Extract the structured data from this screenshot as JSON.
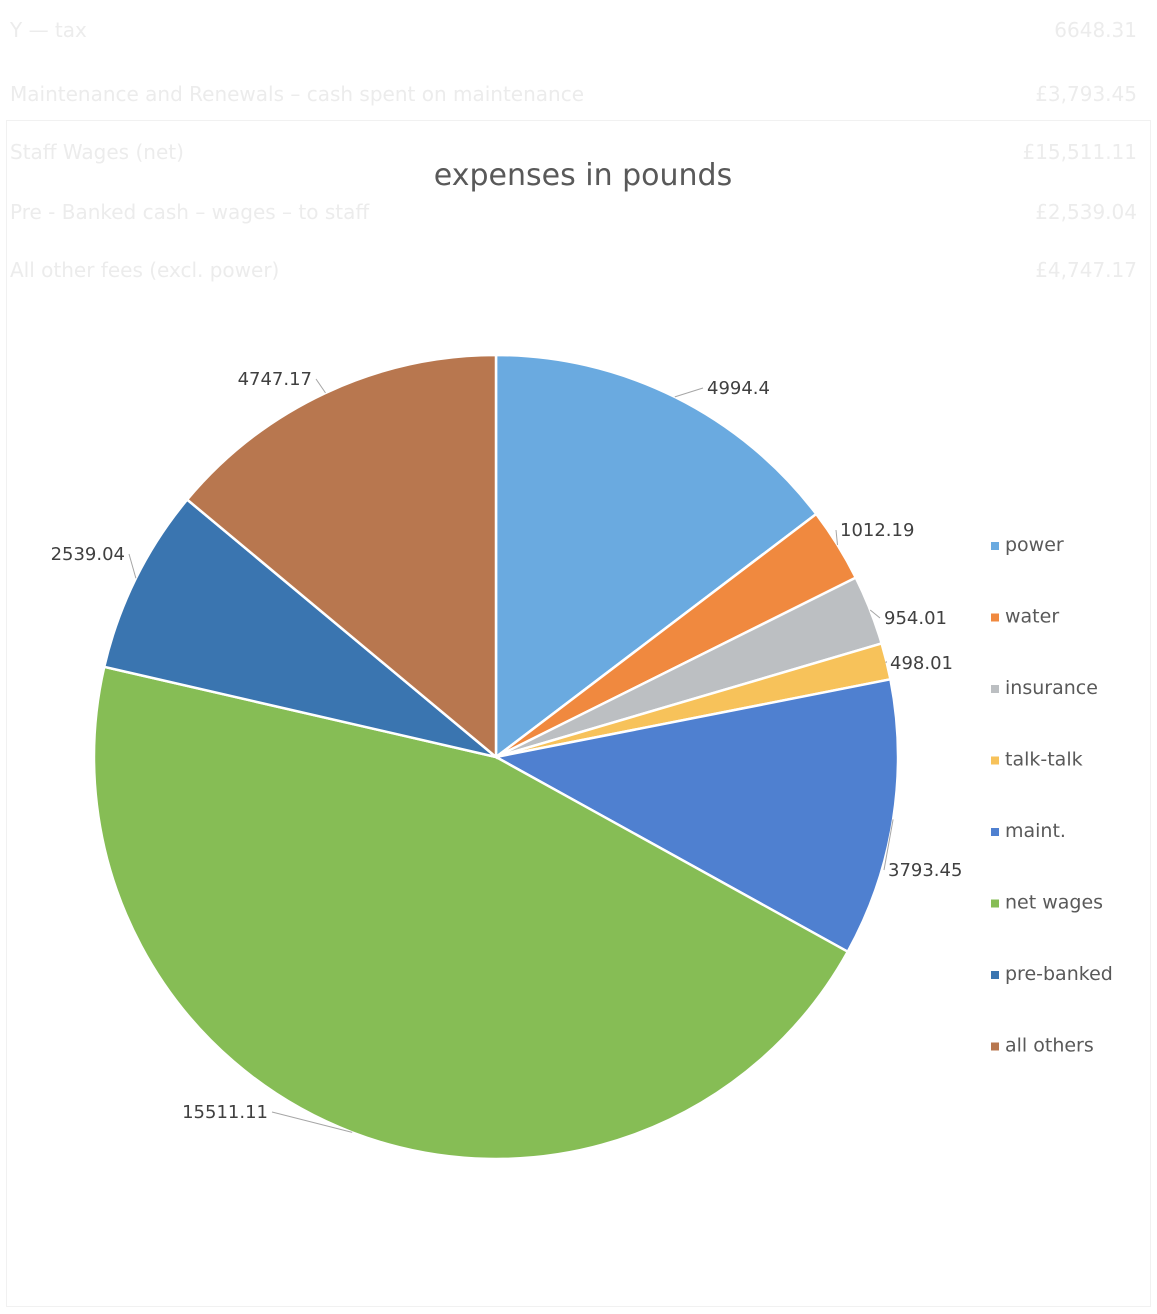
{
  "background_text": {
    "rows": [
      {
        "left": "Y — tax",
        "right": "6648.31"
      },
      {
        "left": "Maintenance and Renewals – cash spent on maintenance",
        "right": "£3,793.45"
      },
      {
        "left": "Staff Wages (net)",
        "right": "£15,511.11"
      },
      {
        "left": "Pre - Banked cash – wages – to staff",
        "right": "£2,539.04"
      },
      {
        "left": "All other fees (excl. power)",
        "right": "£4,747.17"
      }
    ]
  },
  "chart_data": {
    "type": "pie",
    "title": "expenses in pounds",
    "categories": [
      "power",
      "water",
      "insurance",
      "talk-talk",
      "maint.",
      "net wages",
      "pre-banked",
      "all others"
    ],
    "values": [
      4994.4,
      1012.19,
      954.01,
      498.01,
      3793.45,
      15511.11,
      2539.04,
      4747.17
    ],
    "labels": [
      "4994.4",
      "1012.19",
      "954.01",
      "498.01",
      "3793.45",
      "15511.11",
      "2539.04",
      "4747.17"
    ],
    "colors": [
      "#5b9bd5",
      "#ed7d31",
      "#a5a5a5",
      "#ffc000",
      "#4472c4",
      "#70ad47",
      "#255e91",
      "#9e480e"
    ],
    "display_colors": [
      "#6aaae0",
      "#f0893f",
      "#bcbfc2",
      "#f7c25a",
      "#4f80d0",
      "#86bd55",
      "#3a75b0",
      "#b8774f"
    ],
    "legend_position": "right",
    "start_angle_deg": 0,
    "direction": "clockwise"
  }
}
